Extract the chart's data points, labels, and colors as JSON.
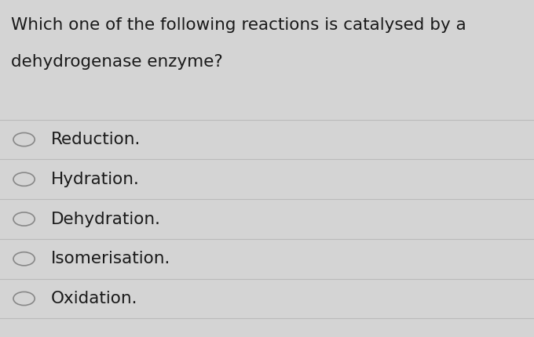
{
  "question_line1": "Which one of the following reactions is catalysed by a",
  "question_line2": "dehydrogenase enzyme?",
  "options": [
    "Reduction.",
    "Hydration.",
    "Dehydration.",
    "Isomerisation.",
    "Oxidation."
  ],
  "background_color": "#d4d4d4",
  "text_color": "#1a1a1a",
  "line_color": "#bbbbbb",
  "circle_color": "#888888",
  "question_fontsize": 15.5,
  "option_fontsize": 15.5,
  "figwidth": 6.8,
  "figheight": 4.3,
  "dpi": 100
}
